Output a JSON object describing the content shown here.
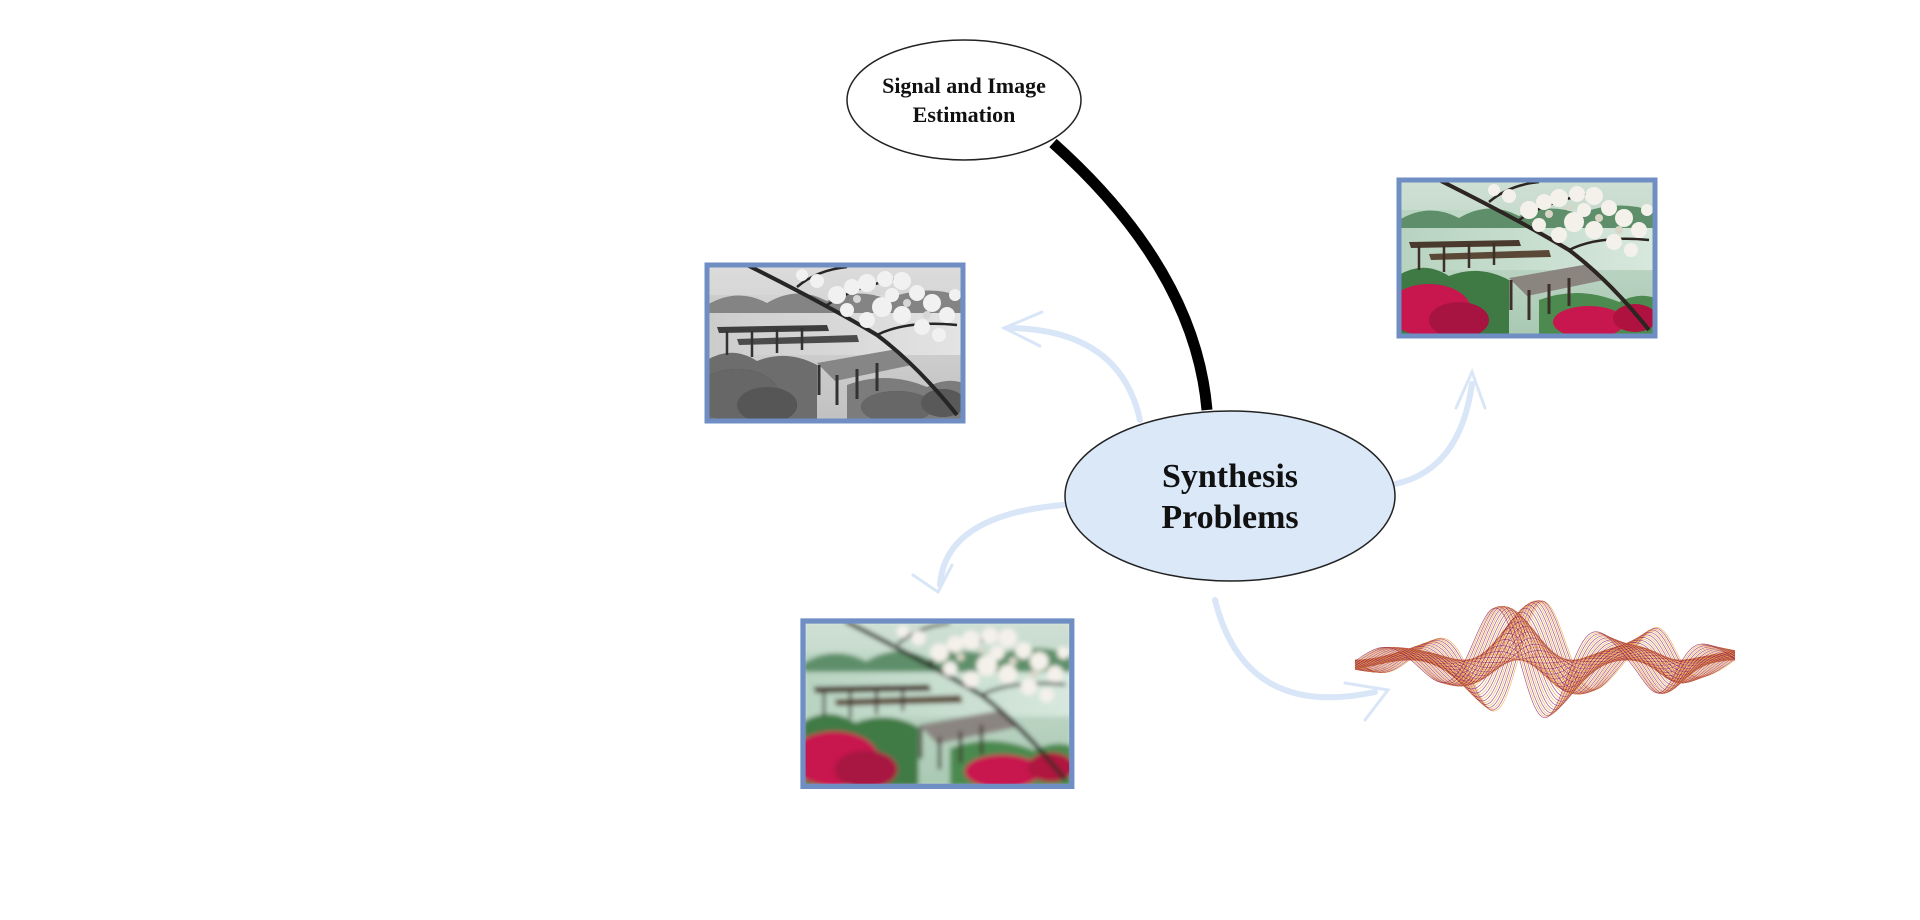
{
  "diagram": {
    "central_node": {
      "line1": "Synthesis",
      "line2": "Problems",
      "fill": "#dbe8f8"
    },
    "top_node": {
      "line1": "Signal and Image",
      "line2": "Estimation",
      "fill": "#ffffff"
    },
    "image_frame_color": "#6f8fc4",
    "arrow_color": "#d9e6f7",
    "connector_color": "#000000",
    "images": [
      {
        "name": "grayscale-garden-photo",
        "style": "grayscale"
      },
      {
        "name": "color-garden-photo",
        "style": "color"
      },
      {
        "name": "blurred-garden-photo",
        "style": "blurred"
      }
    ],
    "waveform": {
      "name": "sine-ribbon-signal",
      "colors": [
        "#8e1b5c",
        "#f0a030"
      ]
    }
  }
}
